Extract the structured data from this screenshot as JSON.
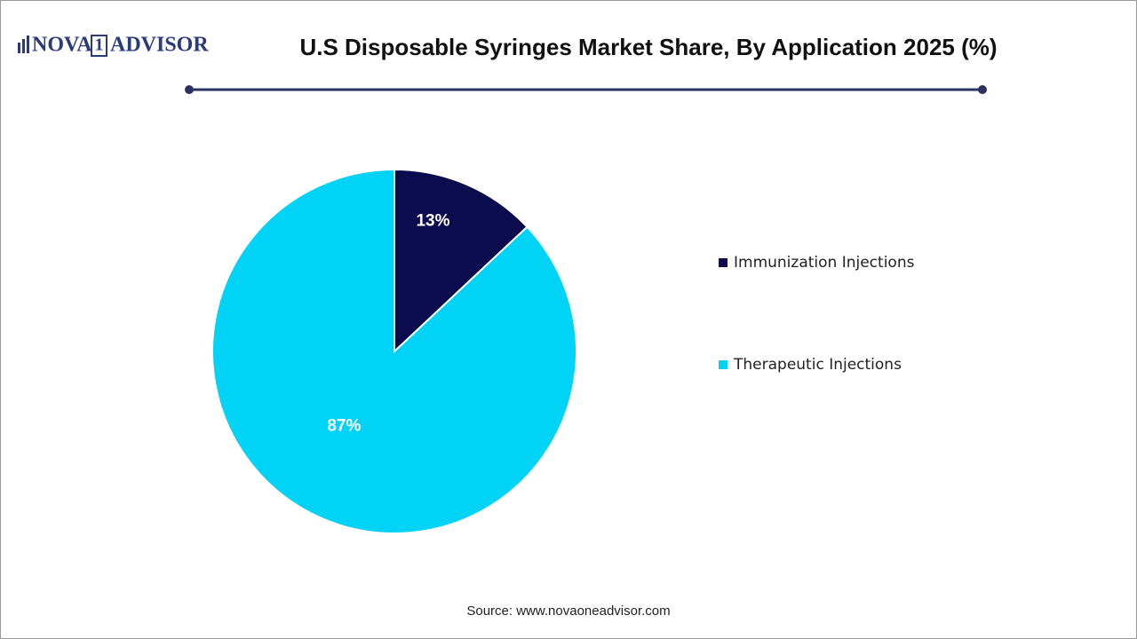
{
  "logo": [
    "NOVA",
    "1",
    "ADVISOR"
  ],
  "chart_data": {
    "type": "pie",
    "title": "U.S Disposable Syringes Market Share, By Application 2025 (%)",
    "categories": [
      "Immunization Injections",
      "Therapeutic Injections"
    ],
    "values": [
      13,
      87
    ],
    "value_labels": [
      "13%",
      "87%"
    ],
    "colors": [
      "#0b0b4d",
      "#00d3f5"
    ]
  },
  "source": "Source: www.novaoneadvisor.com"
}
